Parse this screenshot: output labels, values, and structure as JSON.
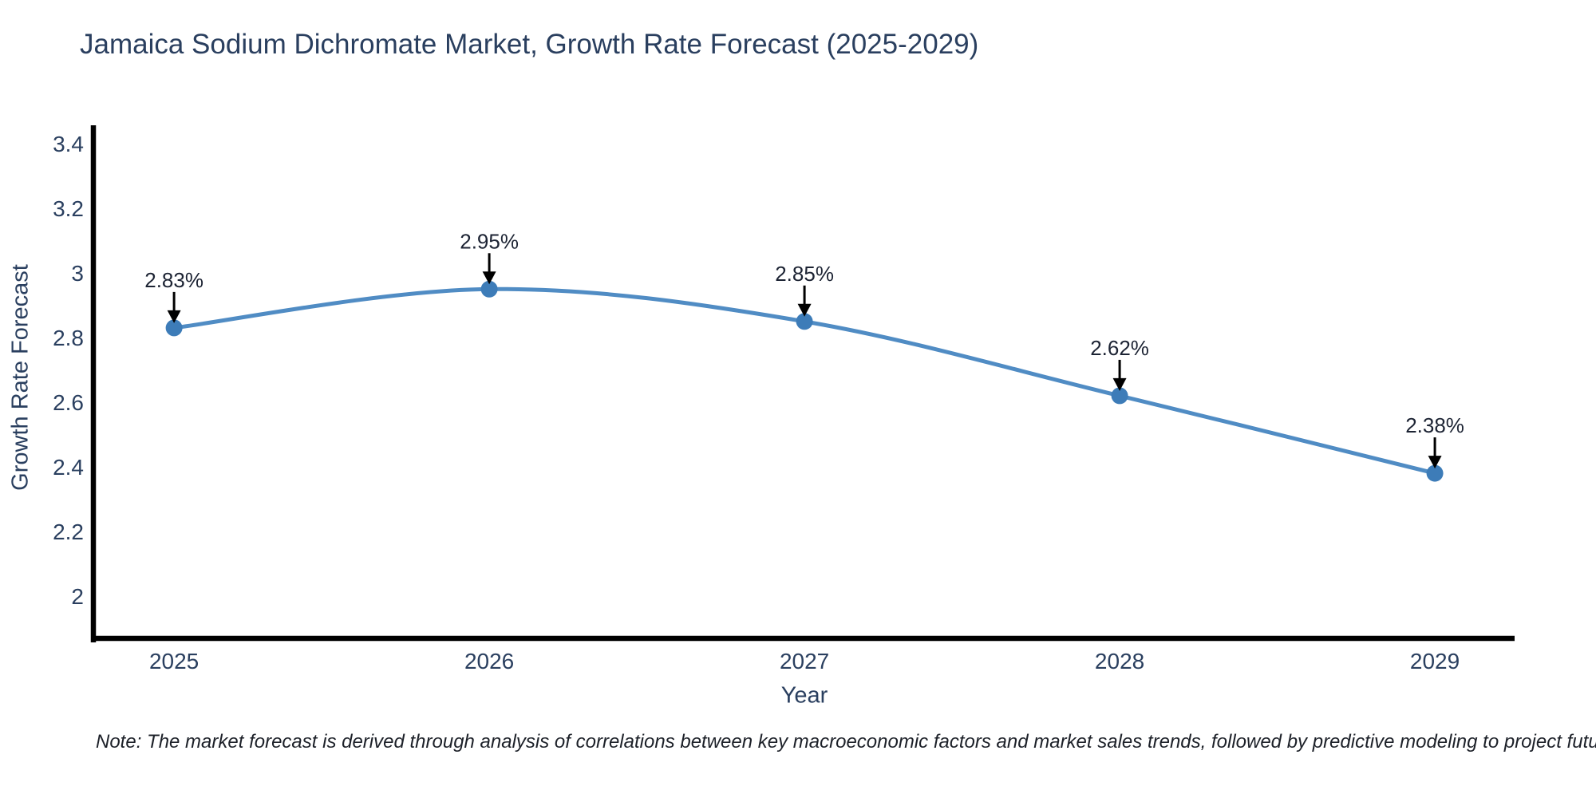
{
  "chart_data": {
    "type": "line",
    "title": "Jamaica Sodium Dichromate Market, Growth Rate Forecast (2025-2029)",
    "xlabel": "Year",
    "ylabel": "Growth Rate Forecast",
    "x": [
      2025,
      2026,
      2027,
      2028,
      2029
    ],
    "values": [
      2.83,
      2.95,
      2.85,
      2.62,
      2.38
    ],
    "point_labels": [
      "2.83%",
      "2.95%",
      "2.85%",
      "2.62%",
      "2.38%"
    ],
    "xtick_labels": [
      "2025",
      "2026",
      "2027",
      "2028",
      "2029"
    ],
    "yticks": [
      2,
      2.2,
      2.4,
      2.6,
      2.8,
      3,
      3.2,
      3.4
    ],
    "ytick_labels": [
      "2",
      "2.2",
      "2.4",
      "2.6",
      "2.8",
      "3",
      "3.2",
      "3.4"
    ],
    "xlim": [
      2024.744,
      2029.253
    ],
    "ylim": [
      1.869,
      3.457
    ],
    "line_shape": "spline",
    "grid": false,
    "legend": "none",
    "colors": {
      "background": "#ffffff",
      "line": "#508cc4",
      "marker": "#3d7cb8",
      "axis": "#000000",
      "title_text": "#2a3f5f",
      "tick_text": "#2a3f5f",
      "annotation_text": "#1c2333",
      "arrow": "#000000"
    }
  },
  "note": {
    "text": "Note: The market forecast is derived through analysis of correlations between key macroeconomic factors and market sales trends, followed by predictive modeling to project future sales"
  }
}
